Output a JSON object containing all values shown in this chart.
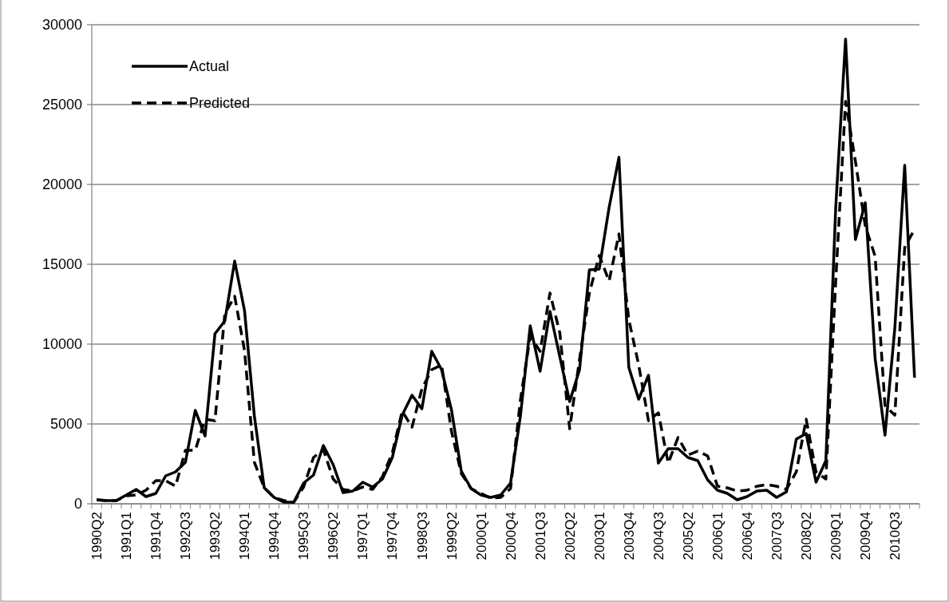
{
  "chart_data": {
    "type": "line",
    "categories": [
      "1990Q2",
      null,
      null,
      "1991Q1",
      null,
      null,
      "1991Q4",
      null,
      null,
      "1992Q3",
      null,
      null,
      "1993Q2",
      null,
      null,
      "1994Q1",
      null,
      null,
      "1994Q4",
      null,
      null,
      "1995Q3",
      null,
      null,
      "1996Q2",
      null,
      null,
      "1997Q1",
      null,
      null,
      "1997Q4",
      null,
      null,
      "1998Q3",
      null,
      null,
      "1999Q2",
      null,
      null,
      "2000Q1",
      null,
      null,
      "2000Q4",
      null,
      null,
      "2001Q3",
      null,
      null,
      "2002Q2",
      null,
      null,
      "2003Q1",
      null,
      null,
      "2003Q4",
      null,
      null,
      "2004Q3",
      null,
      null,
      "2005Q2",
      null,
      null,
      "2006Q1",
      null,
      null,
      "2006Q4",
      null,
      null,
      "2007Q3",
      null,
      null,
      "2008Q2",
      null,
      null,
      "2009Q1",
      null,
      null,
      "2009Q4",
      null,
      null,
      "2010Q3",
      null,
      null
    ],
    "series": [
      {
        "name": "Actual",
        "color": "#000000",
        "line_style": "solid",
        "values": [
          250,
          200,
          200,
          550,
          900,
          450,
          650,
          1750,
          2000,
          2600,
          5850,
          4250,
          10650,
          11450,
          15200,
          12100,
          5500,
          1000,
          400,
          100,
          100,
          1300,
          1800,
          3650,
          2450,
          700,
          800,
          1350,
          1050,
          1550,
          2900,
          5550,
          6800,
          5950,
          9550,
          8400,
          5900,
          2050,
          950,
          550,
          400,
          550,
          1300,
          5500,
          11150,
          8300,
          12050,
          9200,
          6400,
          8400,
          14650,
          14700,
          18550,
          21700,
          8550,
          6550,
          8050,
          2550,
          3450,
          3450,
          2900,
          2700,
          1500,
          850,
          650,
          250,
          450,
          800,
          850,
          400,
          750,
          4050,
          4400,
          1350,
          2700,
          18550,
          29100,
          16550,
          18850,
          9100,
          4300,
          11000,
          21200,
          7900
        ]
      },
      {
        "name": "Predicted",
        "color": "#000000",
        "line_style": "dashed",
        "values": [
          250,
          200,
          200,
          500,
          550,
          850,
          1450,
          1450,
          1100,
          3350,
          3350,
          5300,
          5200,
          11900,
          13000,
          9600,
          2600,
          1000,
          400,
          200,
          100,
          1050,
          2900,
          3400,
          1550,
          900,
          800,
          1050,
          900,
          1700,
          3200,
          5800,
          4800,
          7200,
          8400,
          8700,
          4550,
          1900,
          950,
          650,
          350,
          400,
          950,
          6500,
          10500,
          9550,
          13200,
          10700,
          4700,
          9050,
          13200,
          15550,
          13950,
          16900,
          11550,
          8700,
          5200,
          5700,
          2550,
          4150,
          3050,
          3300,
          3000,
          1100,
          1000,
          800,
          850,
          1100,
          1200,
          1100,
          900,
          2000,
          5300,
          2000,
          1550,
          13950,
          25200,
          21450,
          17400,
          15500,
          6150,
          5550,
          16050,
          17200
        ]
      }
    ],
    "ylim": [
      0,
      30000
    ],
    "yticks": [
      0,
      5000,
      10000,
      15000,
      20000,
      25000,
      30000
    ],
    "grid": "y",
    "legend": "top left"
  }
}
